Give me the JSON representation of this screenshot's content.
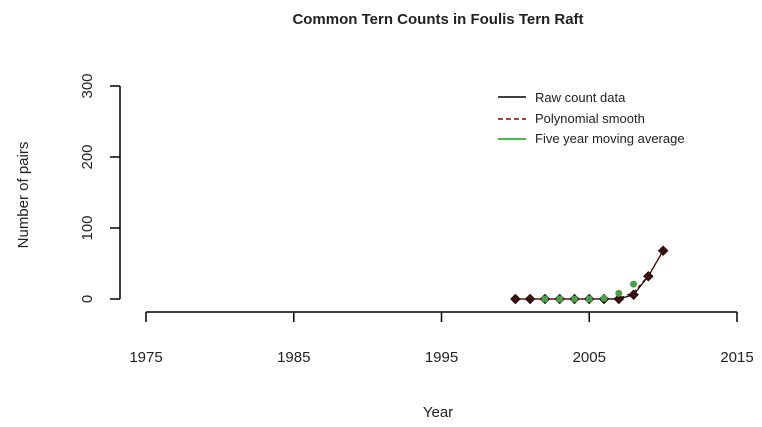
{
  "chart_data": {
    "type": "line",
    "title": "Common Tern Counts in Foulis Tern Raft",
    "xlabel": "Year",
    "ylabel": "Number of pairs",
    "xlim": [
      1975,
      2015
    ],
    "ylim": [
      0,
      300
    ],
    "x_ticks": [
      "1975",
      "1985",
      "1995",
      "2005",
      "2015"
    ],
    "y_ticks": [
      "0",
      "100",
      "200",
      "300"
    ],
    "grid": false,
    "legend_position": "top-right",
    "legend": [
      {
        "label": "Raw count data",
        "color": "#000000",
        "style": "solid"
      },
      {
        "label": "Polynomial smooth",
        "color": "#8b0000",
        "style": "dashed"
      },
      {
        "label": "Five year moving average",
        "color": "#00aa00",
        "style": "solid"
      }
    ],
    "series": [
      {
        "name": "Raw count data",
        "color": "#000000",
        "marker_color": "#3b0d0d",
        "x": [
          2000,
          2001,
          2002,
          2003,
          2004,
          2005,
          2006,
          2007,
          2008,
          2009,
          2010
        ],
        "y": [
          0,
          0,
          0,
          0,
          0,
          0,
          0,
          0,
          6,
          32,
          68
        ]
      },
      {
        "name": "Polynomial smooth",
        "color": "#8b0000",
        "x": [
          2000,
          2001,
          2002,
          2003,
          2004,
          2005,
          2006,
          2007,
          2008,
          2009,
          2010
        ],
        "y": [
          0,
          0,
          0,
          0,
          0,
          0,
          0,
          1,
          9,
          33,
          68
        ]
      },
      {
        "name": "Five year moving average",
        "color": "#4aa04a",
        "x": [
          2002,
          2003,
          2004,
          2005,
          2006,
          2007,
          2008
        ],
        "y": [
          0,
          0,
          0,
          0,
          1,
          8,
          21
        ]
      }
    ]
  }
}
